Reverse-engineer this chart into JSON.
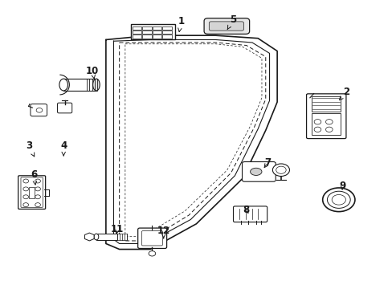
{
  "bg_color": "#ffffff",
  "line_color": "#1a1a1a",
  "fig_width": 4.89,
  "fig_height": 3.6,
  "dpi": 100,
  "label_positions": {
    "1": [
      0.46,
      0.935,
      0.455,
      0.895
    ],
    "2": [
      0.89,
      0.685,
      0.87,
      0.655
    ],
    "3": [
      0.065,
      0.495,
      0.08,
      0.455
    ],
    "4": [
      0.155,
      0.495,
      0.155,
      0.45
    ],
    "5": [
      0.595,
      0.94,
      0.58,
      0.905
    ],
    "6": [
      0.078,
      0.395,
      0.082,
      0.355
    ],
    "7": [
      0.685,
      0.435,
      0.672,
      0.41
    ],
    "8": [
      0.63,
      0.27,
      0.638,
      0.248
    ],
    "9": [
      0.88,
      0.355,
      0.878,
      0.33
    ],
    "10": [
      0.23,
      0.76,
      0.235,
      0.73
    ],
    "11": [
      0.295,
      0.2,
      0.29,
      0.175
    ],
    "12": [
      0.415,
      0.195,
      0.415,
      0.168
    ]
  }
}
